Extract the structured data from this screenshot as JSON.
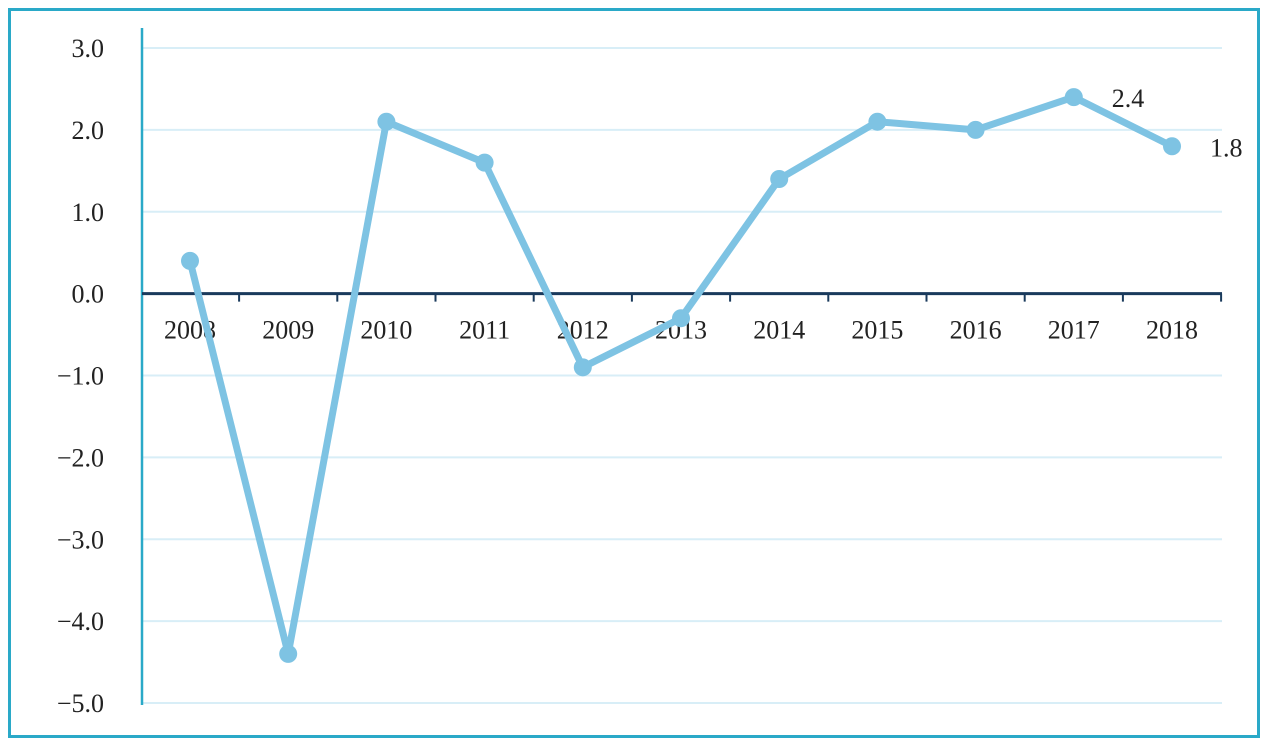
{
  "chart_data": {
    "type": "line",
    "title": "",
    "xlabel": "",
    "ylabel": "",
    "categories": [
      "2008",
      "2009",
      "2010",
      "2011",
      "2012",
      "2013",
      "2014",
      "2015",
      "2016",
      "2017",
      "2018"
    ],
    "series": [
      {
        "values": [
          0.4,
          -4.4,
          2.1,
          1.6,
          -0.9,
          -0.3,
          1.4,
          2.1,
          2.0,
          2.4,
          1.8
        ]
      }
    ],
    "data_labels": [
      {
        "category": "2017",
        "text": "2.4"
      },
      {
        "category": "2018",
        "text": "1.8"
      }
    ],
    "ylim": [
      -5.0,
      3.0
    ],
    "yticks": [
      "3.0",
      "2.0",
      "1.0",
      "0.0",
      "−1.0",
      "−2.0",
      "−3.0",
      "−4.0",
      "−5.0"
    ],
    "ytick_values": [
      3,
      2,
      1,
      0,
      -1,
      -2,
      -3,
      -4,
      -5
    ],
    "grid": true,
    "legend": "none",
    "colors": {
      "line": "#7ec3e3",
      "grid": "#d8eef7",
      "axis": "#1a3a5c",
      "frame": "#2aa9c8",
      "left_axis": "#2aa9c8"
    }
  }
}
